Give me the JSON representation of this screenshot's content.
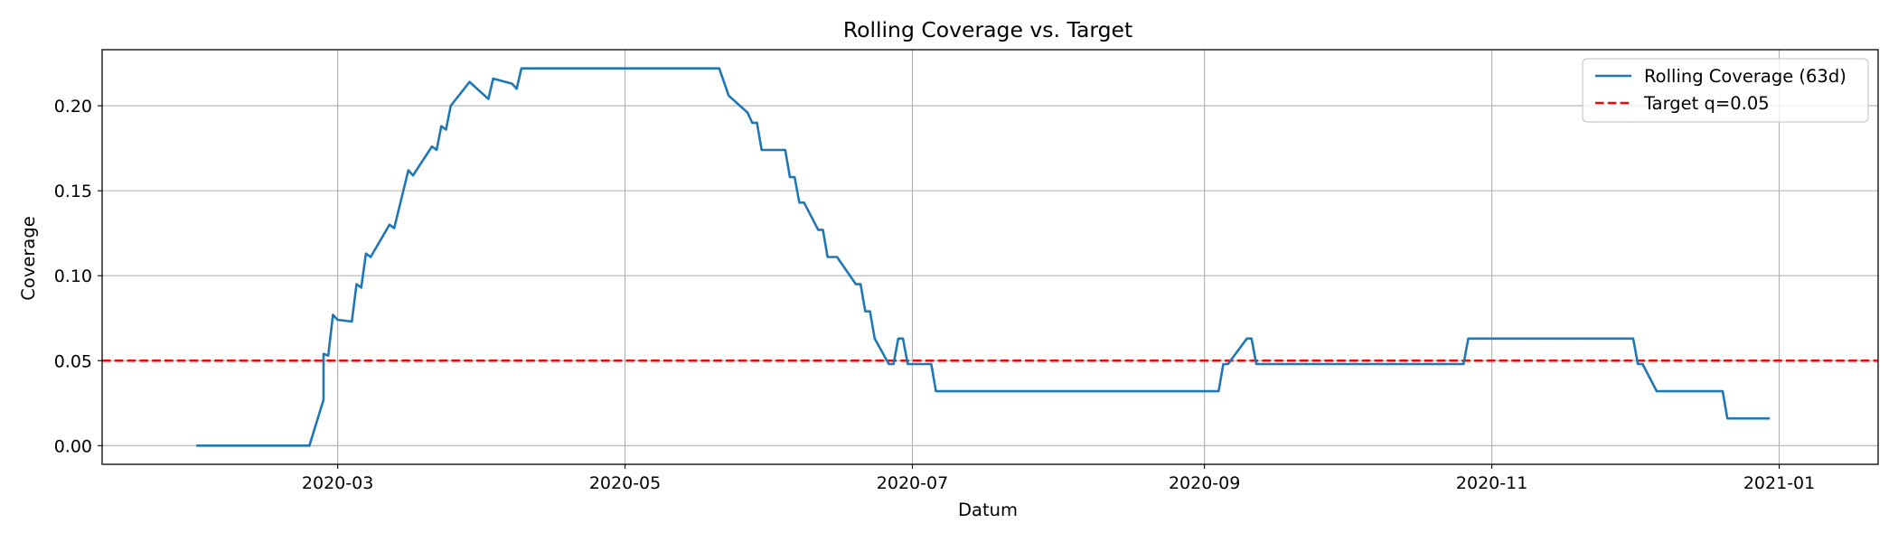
{
  "chart_data": {
    "type": "line",
    "title": "Rolling Coverage vs. Target",
    "xlabel": "Datum",
    "ylabel": "Coverage",
    "xlim": [
      "2020-01-11",
      "2021-01-22"
    ],
    "ylim": [
      -0.011,
      0.233
    ],
    "grid": true,
    "legend_placement": "top-right",
    "x_ticks": [
      {
        "date": "2020-03-01",
        "label": "2020-03"
      },
      {
        "date": "2020-05-01",
        "label": "2020-05"
      },
      {
        "date": "2020-07-01",
        "label": "2020-07"
      },
      {
        "date": "2020-09-01",
        "label": "2020-09"
      },
      {
        "date": "2020-11-01",
        "label": "2020-11"
      },
      {
        "date": "2021-01-01",
        "label": "2021-01"
      }
    ],
    "y_ticks": [
      {
        "value": 0.0,
        "label": "0.00"
      },
      {
        "value": 0.05,
        "label": "0.05"
      },
      {
        "value": 0.1,
        "label": "0.10"
      },
      {
        "value": 0.15,
        "label": "0.15"
      },
      {
        "value": 0.2,
        "label": "0.20"
      }
    ],
    "series": [
      {
        "name": "Rolling Coverage (63d)",
        "style": "solid",
        "color": "#1f77b4",
        "points": [
          [
            "2020-01-31",
            0.0
          ],
          [
            "2020-02-24",
            0.0
          ],
          [
            "2020-02-27",
            0.027
          ],
          [
            "2020-02-27",
            0.054
          ],
          [
            "2020-02-28",
            0.053
          ],
          [
            "2020-02-29",
            0.077
          ],
          [
            "2020-03-01",
            0.074
          ],
          [
            "2020-03-04",
            0.073
          ],
          [
            "2020-03-05",
            0.095
          ],
          [
            "2020-03-06",
            0.093
          ],
          [
            "2020-03-07",
            0.113
          ],
          [
            "2020-03-08",
            0.111
          ],
          [
            "2020-03-12",
            0.13
          ],
          [
            "2020-03-13",
            0.128
          ],
          [
            "2020-03-16",
            0.162
          ],
          [
            "2020-03-17",
            0.159
          ],
          [
            "2020-03-21",
            0.176
          ],
          [
            "2020-03-22",
            0.174
          ],
          [
            "2020-03-23",
            0.188
          ],
          [
            "2020-03-24",
            0.186
          ],
          [
            "2020-03-25",
            0.2
          ],
          [
            "2020-03-29",
            0.214
          ],
          [
            "2020-04-02",
            0.204
          ],
          [
            "2020-04-03",
            0.216
          ],
          [
            "2020-04-07",
            0.213
          ],
          [
            "2020-04-08",
            0.21
          ],
          [
            "2020-04-09",
            0.222
          ],
          [
            "2020-05-21",
            0.222
          ],
          [
            "2020-05-23",
            0.206
          ],
          [
            "2020-05-27",
            0.196
          ],
          [
            "2020-05-28",
            0.19
          ],
          [
            "2020-05-29",
            0.19
          ],
          [
            "2020-05-30",
            0.174
          ],
          [
            "2020-06-04",
            0.174
          ],
          [
            "2020-06-05",
            0.158
          ],
          [
            "2020-06-06",
            0.158
          ],
          [
            "2020-06-07",
            0.143
          ],
          [
            "2020-06-08",
            0.143
          ],
          [
            "2020-06-11",
            0.127
          ],
          [
            "2020-06-12",
            0.127
          ],
          [
            "2020-06-13",
            0.111
          ],
          [
            "2020-06-15",
            0.111
          ],
          [
            "2020-06-19",
            0.095
          ],
          [
            "2020-06-20",
            0.095
          ],
          [
            "2020-06-21",
            0.079
          ],
          [
            "2020-06-22",
            0.079
          ],
          [
            "2020-06-23",
            0.063
          ],
          [
            "2020-06-26",
            0.048
          ],
          [
            "2020-06-27",
            0.048
          ],
          [
            "2020-06-28",
            0.063
          ],
          [
            "2020-06-29",
            0.063
          ],
          [
            "2020-06-30",
            0.048
          ],
          [
            "2020-07-05",
            0.048
          ],
          [
            "2020-07-06",
            0.032
          ],
          [
            "2020-09-04",
            0.032
          ],
          [
            "2020-09-05",
            0.048
          ],
          [
            "2020-09-06",
            0.048
          ],
          [
            "2020-09-10",
            0.063
          ],
          [
            "2020-09-11",
            0.063
          ],
          [
            "2020-09-12",
            0.048
          ],
          [
            "2020-10-26",
            0.048
          ],
          [
            "2020-10-27",
            0.063
          ],
          [
            "2020-12-01",
            0.063
          ],
          [
            "2020-12-02",
            0.048
          ],
          [
            "2020-12-03",
            0.048
          ],
          [
            "2020-12-06",
            0.032
          ],
          [
            "2020-12-20",
            0.032
          ],
          [
            "2020-12-21",
            0.016
          ],
          [
            "2020-12-30",
            0.016
          ]
        ]
      },
      {
        "name": "Target q=0.05",
        "style": "dashed",
        "color": "#ff0000",
        "constant": 0.05
      }
    ]
  }
}
